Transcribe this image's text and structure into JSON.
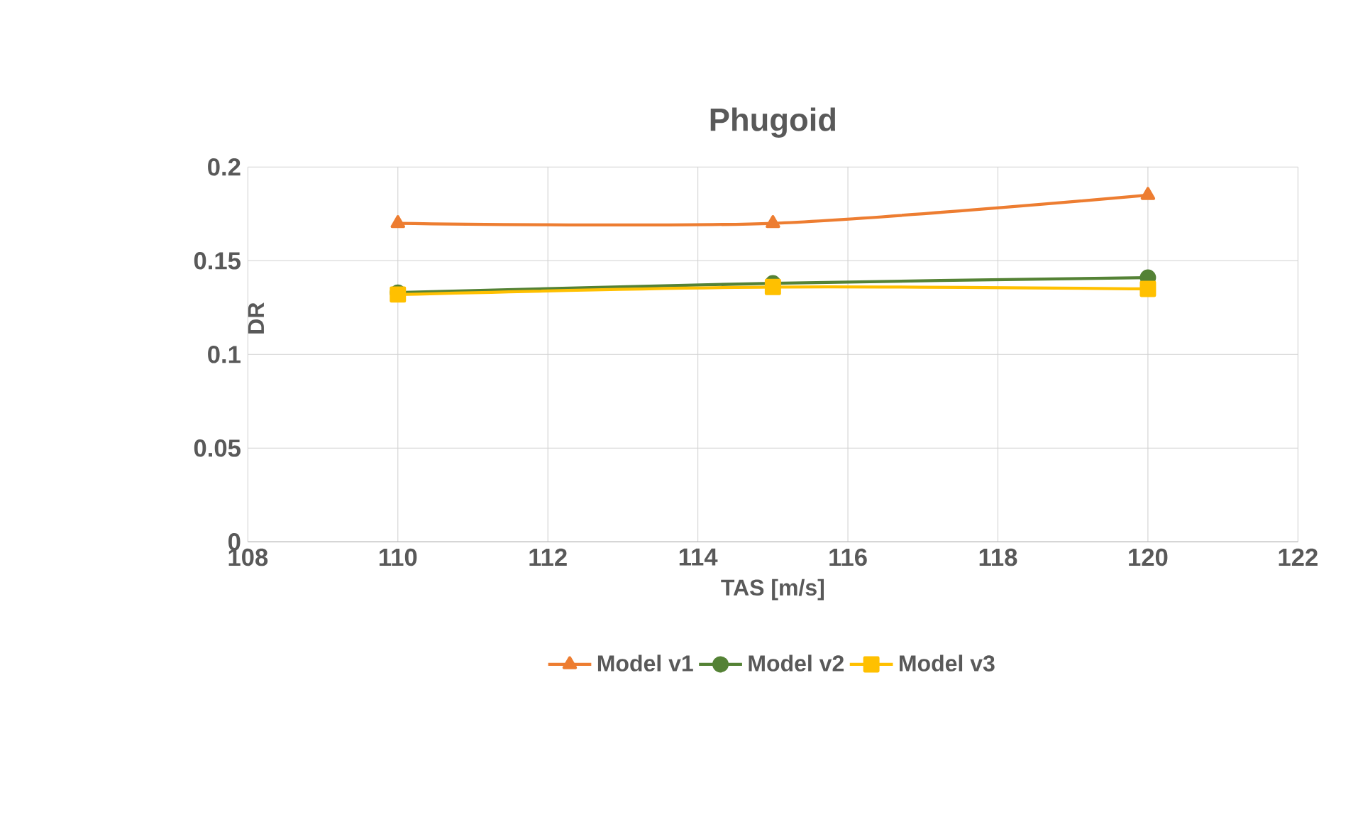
{
  "chart_data": {
    "type": "line",
    "title": "Phugoid",
    "xlabel": "TAS [m/s]",
    "ylabel": "DR",
    "x": [
      110,
      115,
      120
    ],
    "series": [
      {
        "name": "Model v1",
        "color": "#ed7d31",
        "marker": "triangle",
        "values": [
          0.17,
          0.17,
          0.185
        ]
      },
      {
        "name": "Model v2",
        "color": "#548235",
        "marker": "circle",
        "values": [
          0.133,
          0.138,
          0.141
        ]
      },
      {
        "name": "Model v3",
        "color": "#ffc000",
        "marker": "square",
        "values": [
          0.132,
          0.136,
          0.135
        ]
      }
    ],
    "xlim": [
      108,
      122
    ],
    "xticks": [
      108,
      110,
      112,
      114,
      116,
      118,
      120,
      122
    ],
    "ylim": [
      0,
      0.2
    ],
    "yticks": [
      0,
      0.05,
      0.1,
      0.15,
      0.2
    ],
    "grid": true,
    "legend": "bottom"
  }
}
